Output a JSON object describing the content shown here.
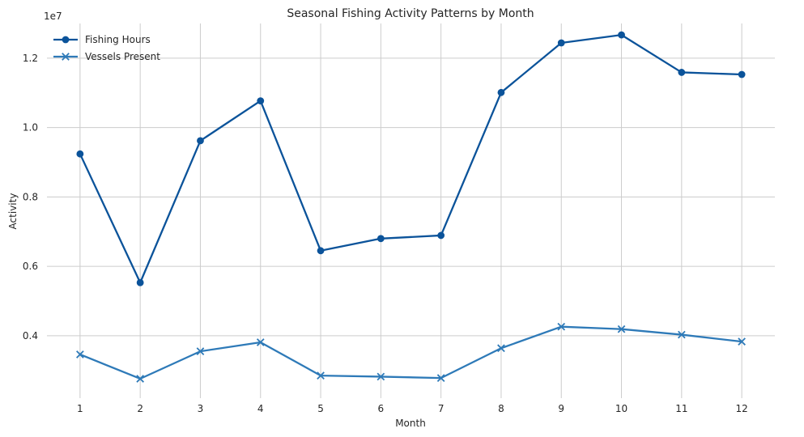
{
  "chart_data": {
    "type": "line",
    "title": "Seasonal Fishing Activity Patterns by Month",
    "xlabel": "Month",
    "ylabel": "Activity",
    "y_offset_label": "1e7",
    "x": [
      1,
      2,
      3,
      4,
      5,
      6,
      7,
      8,
      9,
      10,
      11,
      12
    ],
    "xlim": [
      0.45,
      12.55
    ],
    "ylim": [
      2200000,
      13000000
    ],
    "y_ticks": [
      4000000,
      6000000,
      8000000,
      10000000,
      12000000
    ],
    "y_tick_labels": [
      "0.4",
      "0.6",
      "0.8",
      "1.0",
      "1.2"
    ],
    "grid": true,
    "legend_position": "top-left",
    "series": [
      {
        "name": "Fishing Hours",
        "color": "#0b539a",
        "marker": "circle",
        "values": [
          9240000,
          5530000,
          9620000,
          10770000,
          6450000,
          6800000,
          6890000,
          11010000,
          12440000,
          12670000,
          11590000,
          11530000
        ]
      },
      {
        "name": "Vessels Present",
        "color": "#2e7ab8",
        "marker": "x",
        "values": [
          3460000,
          2760000,
          3550000,
          3810000,
          2850000,
          2820000,
          2780000,
          3640000,
          4260000,
          4190000,
          4030000,
          3830000
        ]
      }
    ]
  }
}
